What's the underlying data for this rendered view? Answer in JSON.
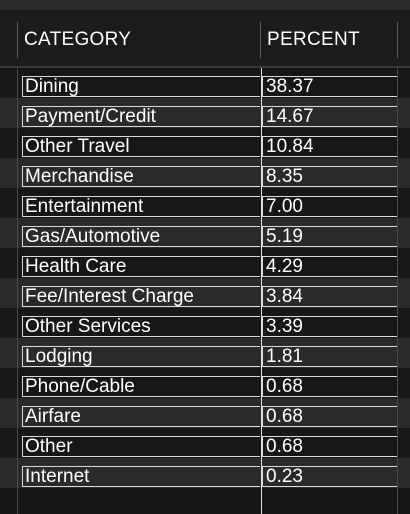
{
  "table": {
    "headers": {
      "category": "CATEGORY",
      "percent": "PERCENT"
    },
    "rows": [
      {
        "category": "Dining",
        "percent": "38.37"
      },
      {
        "category": "Payment/Credit",
        "percent": "14.67"
      },
      {
        "category": "Other Travel",
        "percent": "10.84"
      },
      {
        "category": "Merchandise",
        "percent": "8.35"
      },
      {
        "category": "Entertainment",
        "percent": "7.00"
      },
      {
        "category": "Gas/Automotive",
        "percent": "5.19"
      },
      {
        "category": "Health Care",
        "percent": "4.29"
      },
      {
        "category": "Fee/Interest Charge",
        "percent": "3.84"
      },
      {
        "category": "Other Services",
        "percent": "3.39"
      },
      {
        "category": "Lodging",
        "percent": "1.81"
      },
      {
        "category": "Phone/Cable",
        "percent": "0.68"
      },
      {
        "category": "Airfare",
        "percent": "0.68"
      },
      {
        "category": "Other",
        "percent": "0.68"
      },
      {
        "category": "Internet",
        "percent": "0.23"
      }
    ]
  },
  "colors": {
    "background": "#161616",
    "row_alt": "#2a2a2a",
    "text": "#ffffff",
    "grid": "#d9d9d9"
  }
}
